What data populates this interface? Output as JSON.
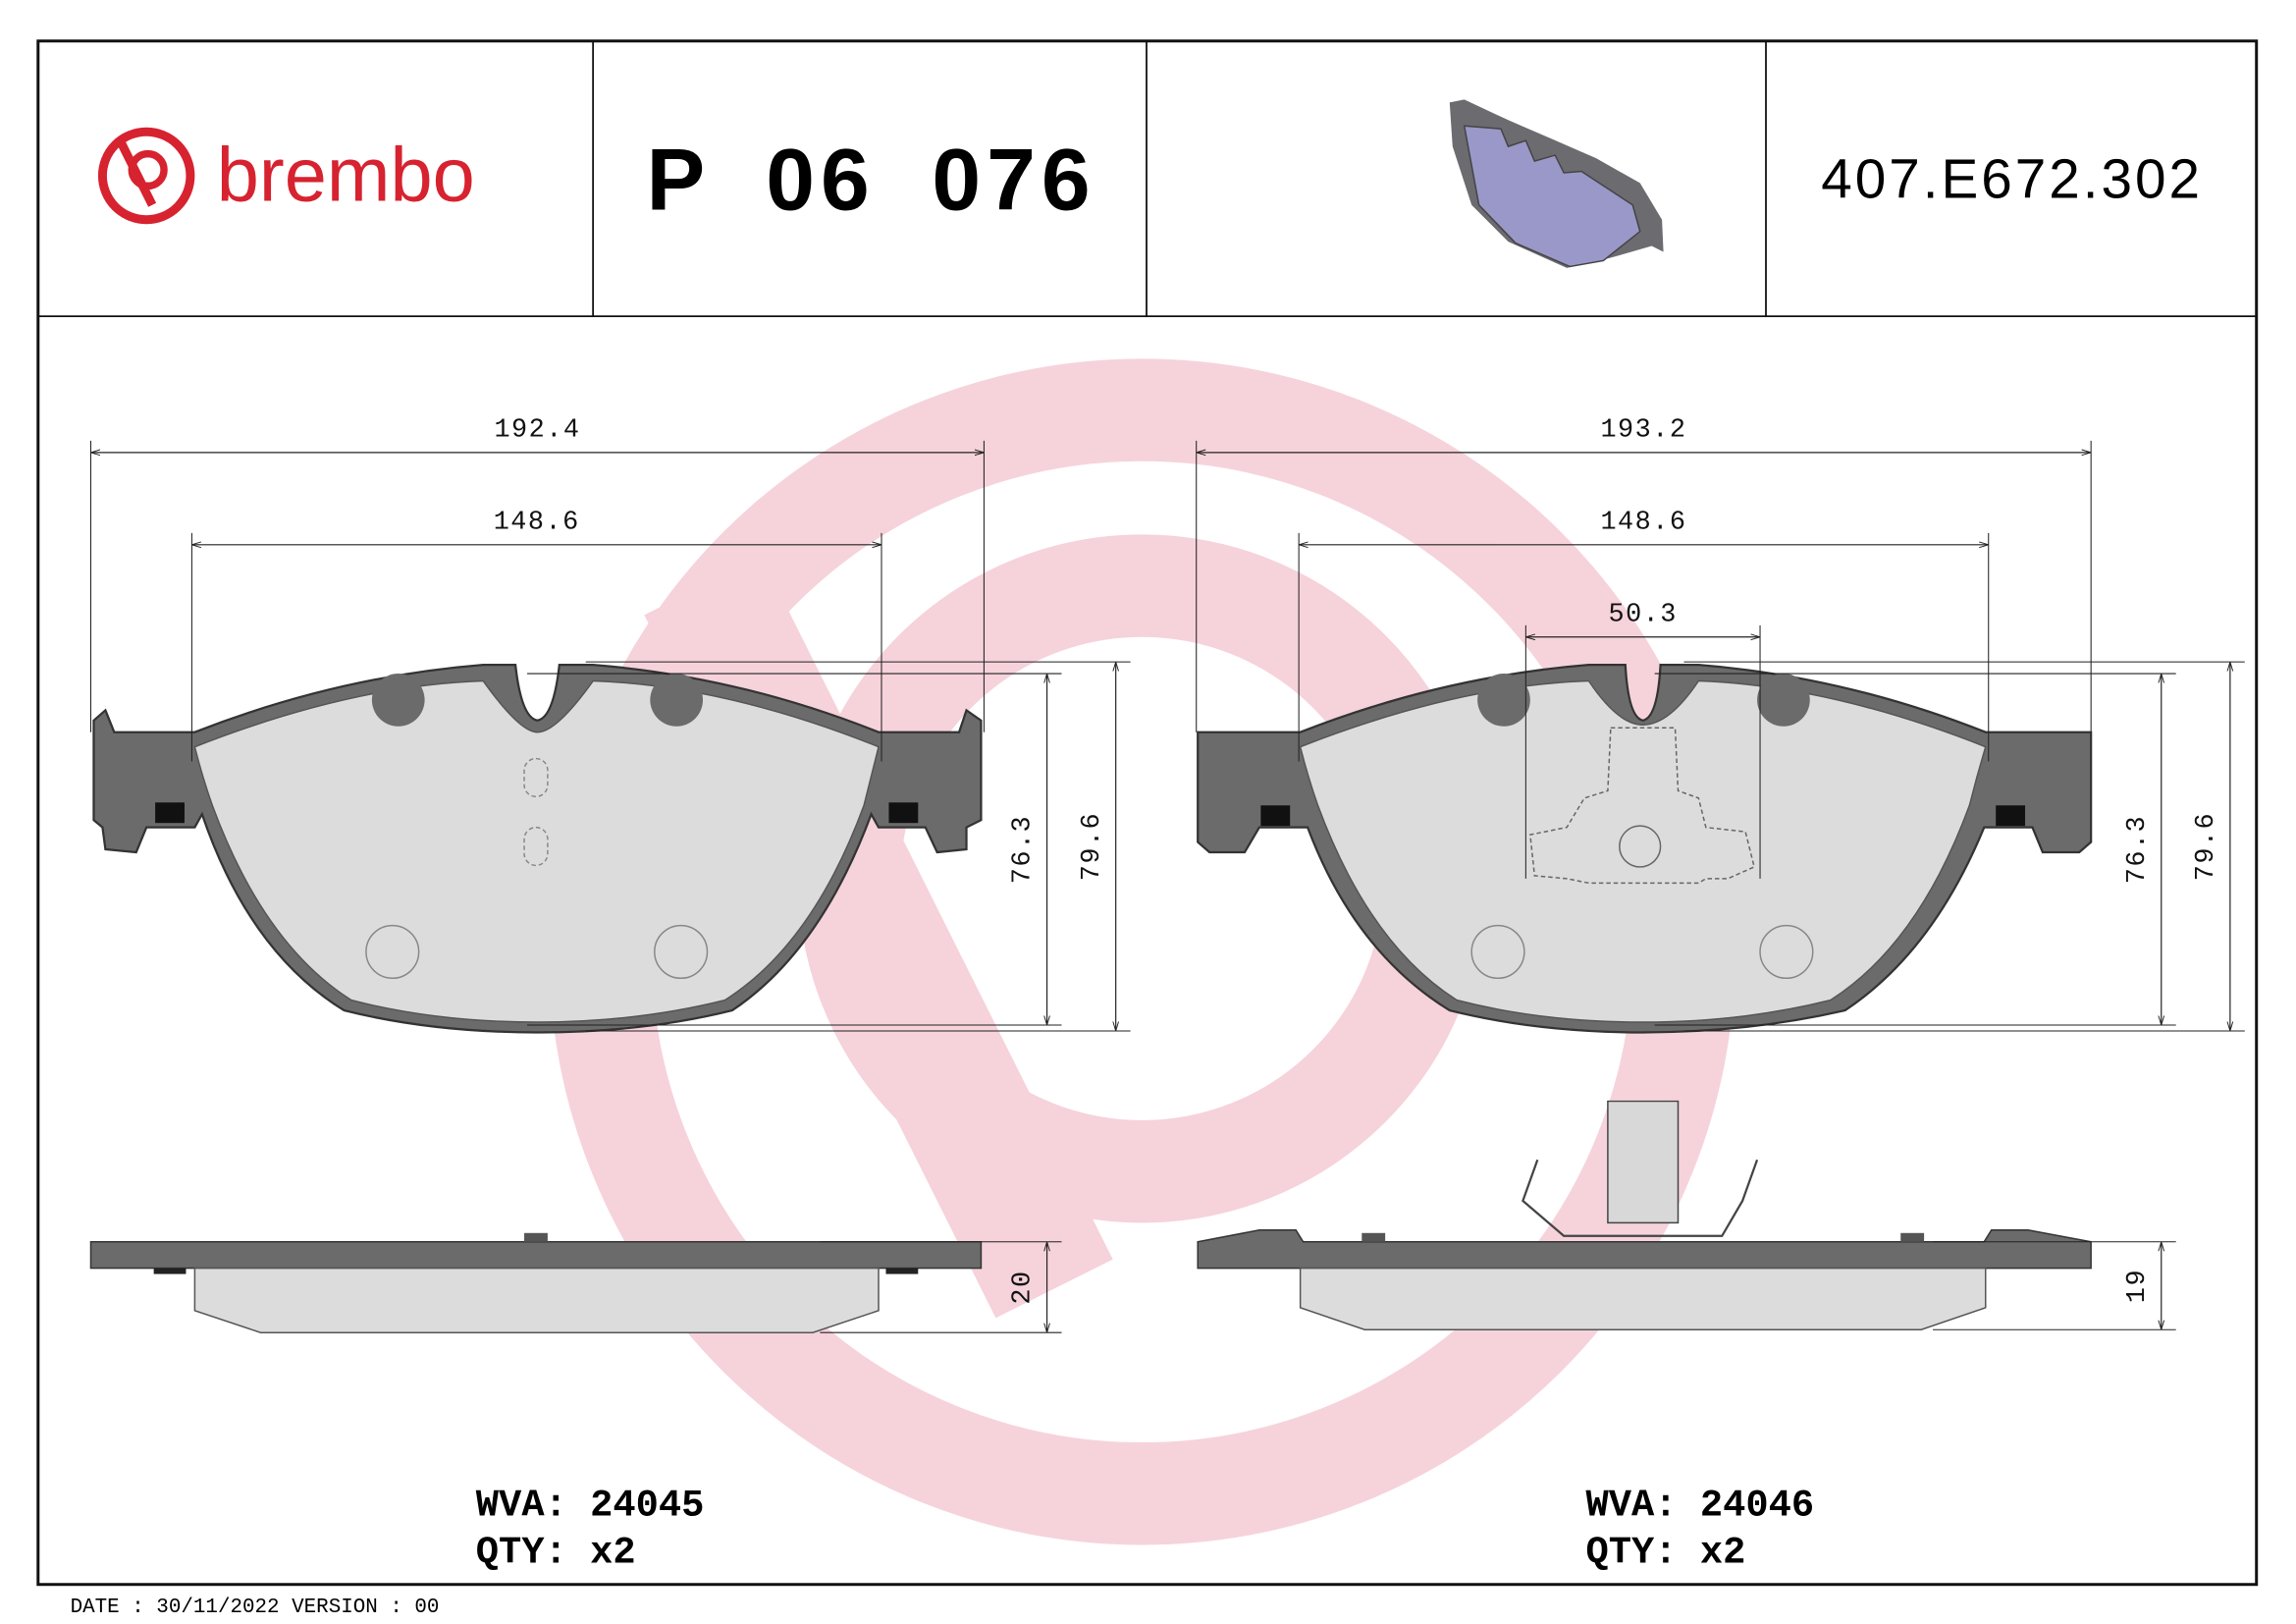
{
  "header": {
    "brand": "brembo",
    "part_number": "P 06 076",
    "reference": "407.E672.302"
  },
  "pads": [
    {
      "dimensions": {
        "overall_width": "192.4",
        "friction_width": "148.6",
        "friction_height": "76.3",
        "overall_height": "79.6",
        "thickness": "20"
      },
      "wva": "WVA: 24045",
      "qty": "QTY: x2"
    },
    {
      "dimensions": {
        "overall_width": "193.2",
        "friction_width": "148.6",
        "sensor_width": "50.3",
        "friction_height": "76.3",
        "overall_height": "79.6",
        "thickness": "19"
      },
      "wva": "WVA: 24046",
      "qty": "QTY: x2"
    }
  ],
  "footer": "DATE : 30/11/2022 VERSION : 00"
}
